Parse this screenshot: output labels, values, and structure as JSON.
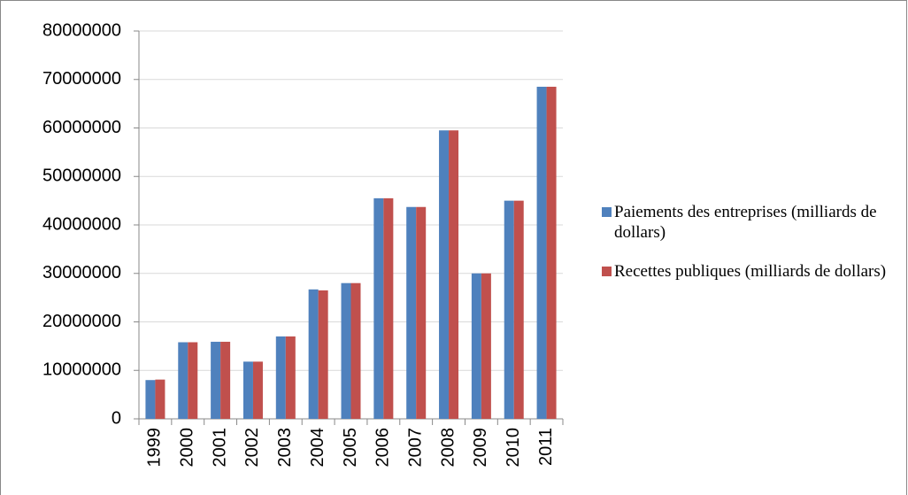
{
  "chart_data": {
    "type": "bar",
    "categories": [
      "1999",
      "2000",
      "2001",
      "2002",
      "2003",
      "2004",
      "2005",
      "2006",
      "2007",
      "2008",
      "2009",
      "2010",
      "2011"
    ],
    "series": [
      {
        "name": "Paiements des entreprises (milliards de dollars)",
        "color": "#4f81bd",
        "values": [
          8000000,
          15800000,
          15900000,
          11800000,
          17000000,
          26700000,
          28000000,
          45500000,
          43700000,
          59500000,
          30000000,
          45000000,
          68500000
        ]
      },
      {
        "name": "Recettes publiques (milliards de dollars)",
        "color": "#c0504d",
        "values": [
          8100000,
          15800000,
          15900000,
          11800000,
          17000000,
          26500000,
          28000000,
          45500000,
          43700000,
          59500000,
          30000000,
          45000000,
          68500000
        ]
      }
    ],
    "ylim": [
      0,
      80000000
    ],
    "yticks": [
      0,
      10000000,
      20000000,
      30000000,
      40000000,
      50000000,
      60000000,
      70000000,
      80000000
    ],
    "grid": true,
    "legend": "right"
  }
}
